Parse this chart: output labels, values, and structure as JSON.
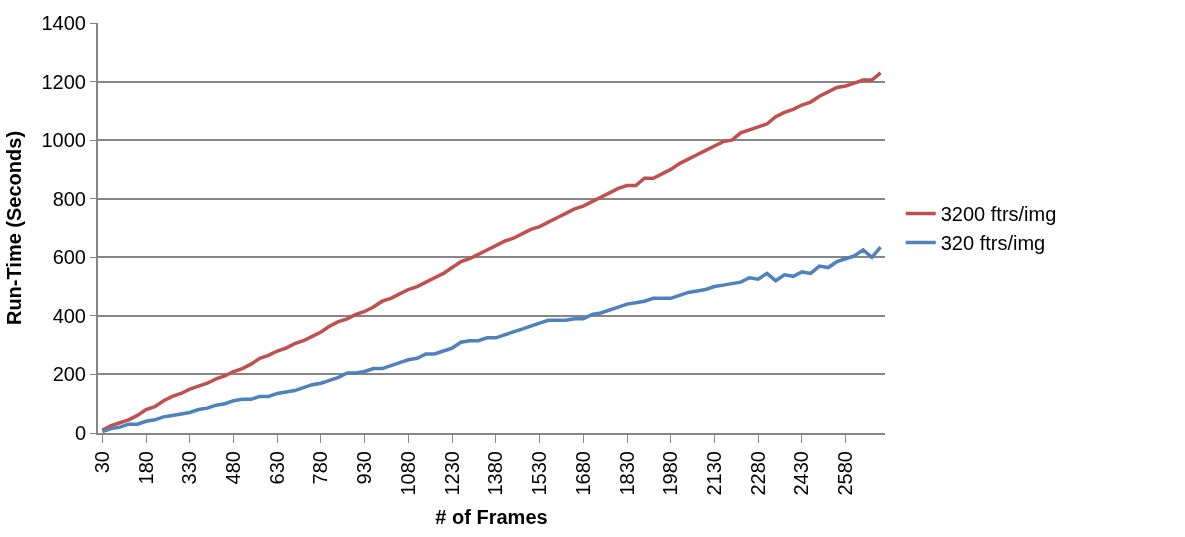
{
  "chart_data": {
    "type": "line",
    "xlabel": "# of Frames",
    "ylabel": "Run-Time (Seconds)",
    "categories": [
      "30",
      null,
      null,
      null,
      null,
      "180",
      null,
      null,
      null,
      null,
      "330",
      null,
      null,
      null,
      null,
      "480",
      null,
      null,
      null,
      null,
      "630",
      null,
      null,
      null,
      null,
      "780",
      null,
      null,
      null,
      null,
      "930",
      null,
      null,
      null,
      null,
      "1080",
      null,
      null,
      null,
      null,
      "1230",
      null,
      null,
      null,
      null,
      "1380",
      null,
      null,
      null,
      null,
      "1530",
      null,
      null,
      null,
      null,
      "1680",
      null,
      null,
      null,
      null,
      "1830",
      null,
      null,
      null,
      null,
      "1980",
      null,
      null,
      null,
      null,
      "2130",
      null,
      null,
      null,
      null,
      "2280",
      null,
      null,
      null,
      null,
      "2430",
      null,
      null,
      null,
      null,
      "2580",
      null,
      null,
      null,
      null
    ],
    "series": [
      {
        "name": "3200 ftrs/img",
        "color": "#c0504d",
        "values": [
          10,
          25,
          35,
          45,
          60,
          80,
          90,
          110,
          125,
          135,
          150,
          160,
          170,
          185,
          195,
          210,
          220,
          235,
          255,
          265,
          280,
          290,
          305,
          315,
          330,
          345,
          365,
          380,
          390,
          405,
          415,
          430,
          450,
          460,
          475,
          490,
          500,
          515,
          530,
          545,
          565,
          585,
          595,
          610,
          625,
          640,
          655,
          665,
          680,
          695,
          705,
          720,
          735,
          750,
          765,
          775,
          790,
          805,
          820,
          835,
          845,
          845,
          870,
          870,
          885,
          900,
          920,
          935,
          950,
          965,
          980,
          995,
          1000,
          1025,
          1035,
          1045,
          1055,
          1080,
          1095,
          1105,
          1120,
          1130,
          1150,
          1165,
          1180,
          1185,
          1195,
          1205,
          1205,
          1230
        ]
      },
      {
        "name": "320 ftrs/img",
        "color": "#4f81bd",
        "values": [
          5,
          15,
          20,
          30,
          30,
          40,
          45,
          55,
          60,
          65,
          70,
          80,
          85,
          95,
          100,
          110,
          115,
          115,
          125,
          125,
          135,
          140,
          145,
          155,
          165,
          170,
          180,
          190,
          205,
          205,
          210,
          220,
          220,
          230,
          240,
          250,
          255,
          270,
          270,
          280,
          290,
          310,
          315,
          315,
          325,
          325,
          335,
          345,
          355,
          365,
          375,
          385,
          385,
          385,
          390,
          390,
          405,
          410,
          420,
          430,
          440,
          445,
          450,
          460,
          460,
          460,
          470,
          480,
          485,
          490,
          500,
          505,
          510,
          515,
          530,
          525,
          545,
          520,
          540,
          535,
          550,
          545,
          570,
          565,
          585,
          595,
          605,
          625,
          600,
          635
        ]
      }
    ],
    "ylim": [
      0,
      1400
    ],
    "yticks": [
      0,
      200,
      400,
      600,
      800,
      1000,
      1200,
      1400
    ],
    "grid": "y",
    "legend": "right",
    "marker": "none",
    "line_style": "solid"
  }
}
